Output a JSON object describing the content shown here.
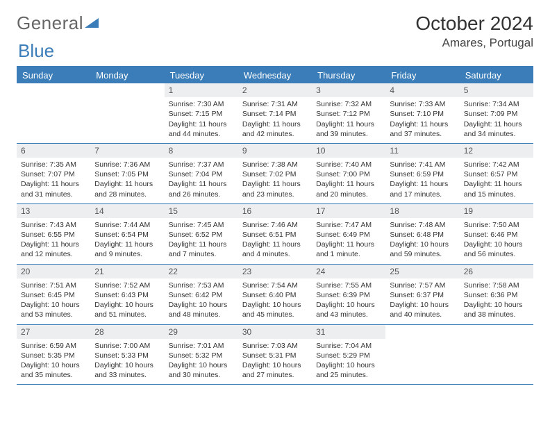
{
  "brand": {
    "part1": "General",
    "part2": "Blue"
  },
  "title": "October 2024",
  "location": "Amares, Portugal",
  "colors": {
    "accent": "#3a7db8",
    "dayBarBg": "#eceef0",
    "text": "#333"
  },
  "dow": [
    "Sunday",
    "Monday",
    "Tuesday",
    "Wednesday",
    "Thursday",
    "Friday",
    "Saturday"
  ],
  "weeks": [
    [
      null,
      null,
      {
        "n": "1",
        "sr": "Sunrise: 7:30 AM",
        "ss": "Sunset: 7:15 PM",
        "dl": "Daylight: 11 hours and 44 minutes."
      },
      {
        "n": "2",
        "sr": "Sunrise: 7:31 AM",
        "ss": "Sunset: 7:14 PM",
        "dl": "Daylight: 11 hours and 42 minutes."
      },
      {
        "n": "3",
        "sr": "Sunrise: 7:32 AM",
        "ss": "Sunset: 7:12 PM",
        "dl": "Daylight: 11 hours and 39 minutes."
      },
      {
        "n": "4",
        "sr": "Sunrise: 7:33 AM",
        "ss": "Sunset: 7:10 PM",
        "dl": "Daylight: 11 hours and 37 minutes."
      },
      {
        "n": "5",
        "sr": "Sunrise: 7:34 AM",
        "ss": "Sunset: 7:09 PM",
        "dl": "Daylight: 11 hours and 34 minutes."
      }
    ],
    [
      {
        "n": "6",
        "sr": "Sunrise: 7:35 AM",
        "ss": "Sunset: 7:07 PM",
        "dl": "Daylight: 11 hours and 31 minutes."
      },
      {
        "n": "7",
        "sr": "Sunrise: 7:36 AM",
        "ss": "Sunset: 7:05 PM",
        "dl": "Daylight: 11 hours and 28 minutes."
      },
      {
        "n": "8",
        "sr": "Sunrise: 7:37 AM",
        "ss": "Sunset: 7:04 PM",
        "dl": "Daylight: 11 hours and 26 minutes."
      },
      {
        "n": "9",
        "sr": "Sunrise: 7:38 AM",
        "ss": "Sunset: 7:02 PM",
        "dl": "Daylight: 11 hours and 23 minutes."
      },
      {
        "n": "10",
        "sr": "Sunrise: 7:40 AM",
        "ss": "Sunset: 7:00 PM",
        "dl": "Daylight: 11 hours and 20 minutes."
      },
      {
        "n": "11",
        "sr": "Sunrise: 7:41 AM",
        "ss": "Sunset: 6:59 PM",
        "dl": "Daylight: 11 hours and 17 minutes."
      },
      {
        "n": "12",
        "sr": "Sunrise: 7:42 AM",
        "ss": "Sunset: 6:57 PM",
        "dl": "Daylight: 11 hours and 15 minutes."
      }
    ],
    [
      {
        "n": "13",
        "sr": "Sunrise: 7:43 AM",
        "ss": "Sunset: 6:55 PM",
        "dl": "Daylight: 11 hours and 12 minutes."
      },
      {
        "n": "14",
        "sr": "Sunrise: 7:44 AM",
        "ss": "Sunset: 6:54 PM",
        "dl": "Daylight: 11 hours and 9 minutes."
      },
      {
        "n": "15",
        "sr": "Sunrise: 7:45 AM",
        "ss": "Sunset: 6:52 PM",
        "dl": "Daylight: 11 hours and 7 minutes."
      },
      {
        "n": "16",
        "sr": "Sunrise: 7:46 AM",
        "ss": "Sunset: 6:51 PM",
        "dl": "Daylight: 11 hours and 4 minutes."
      },
      {
        "n": "17",
        "sr": "Sunrise: 7:47 AM",
        "ss": "Sunset: 6:49 PM",
        "dl": "Daylight: 11 hours and 1 minute."
      },
      {
        "n": "18",
        "sr": "Sunrise: 7:48 AM",
        "ss": "Sunset: 6:48 PM",
        "dl": "Daylight: 10 hours and 59 minutes."
      },
      {
        "n": "19",
        "sr": "Sunrise: 7:50 AM",
        "ss": "Sunset: 6:46 PM",
        "dl": "Daylight: 10 hours and 56 minutes."
      }
    ],
    [
      {
        "n": "20",
        "sr": "Sunrise: 7:51 AM",
        "ss": "Sunset: 6:45 PM",
        "dl": "Daylight: 10 hours and 53 minutes."
      },
      {
        "n": "21",
        "sr": "Sunrise: 7:52 AM",
        "ss": "Sunset: 6:43 PM",
        "dl": "Daylight: 10 hours and 51 minutes."
      },
      {
        "n": "22",
        "sr": "Sunrise: 7:53 AM",
        "ss": "Sunset: 6:42 PM",
        "dl": "Daylight: 10 hours and 48 minutes."
      },
      {
        "n": "23",
        "sr": "Sunrise: 7:54 AM",
        "ss": "Sunset: 6:40 PM",
        "dl": "Daylight: 10 hours and 45 minutes."
      },
      {
        "n": "24",
        "sr": "Sunrise: 7:55 AM",
        "ss": "Sunset: 6:39 PM",
        "dl": "Daylight: 10 hours and 43 minutes."
      },
      {
        "n": "25",
        "sr": "Sunrise: 7:57 AM",
        "ss": "Sunset: 6:37 PM",
        "dl": "Daylight: 10 hours and 40 minutes."
      },
      {
        "n": "26",
        "sr": "Sunrise: 7:58 AM",
        "ss": "Sunset: 6:36 PM",
        "dl": "Daylight: 10 hours and 38 minutes."
      }
    ],
    [
      {
        "n": "27",
        "sr": "Sunrise: 6:59 AM",
        "ss": "Sunset: 5:35 PM",
        "dl": "Daylight: 10 hours and 35 minutes."
      },
      {
        "n": "28",
        "sr": "Sunrise: 7:00 AM",
        "ss": "Sunset: 5:33 PM",
        "dl": "Daylight: 10 hours and 33 minutes."
      },
      {
        "n": "29",
        "sr": "Sunrise: 7:01 AM",
        "ss": "Sunset: 5:32 PM",
        "dl": "Daylight: 10 hours and 30 minutes."
      },
      {
        "n": "30",
        "sr": "Sunrise: 7:03 AM",
        "ss": "Sunset: 5:31 PM",
        "dl": "Daylight: 10 hours and 27 minutes."
      },
      {
        "n": "31",
        "sr": "Sunrise: 7:04 AM",
        "ss": "Sunset: 5:29 PM",
        "dl": "Daylight: 10 hours and 25 minutes."
      },
      null,
      null
    ]
  ]
}
